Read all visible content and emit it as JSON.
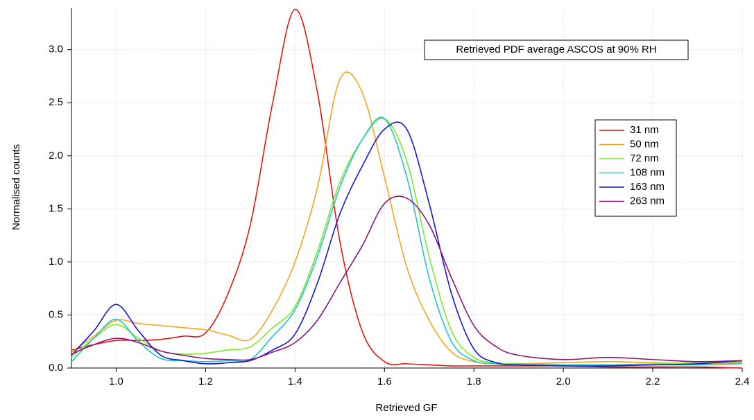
{
  "chart_data": {
    "type": "line",
    "annotation": "Retrieved PDF average ASCOS at 90% RH",
    "x_label": "Retrieved GF",
    "y_label": "Normalised counts",
    "x": [
      0.9,
      0.95,
      1.0,
      1.05,
      1.1,
      1.15,
      1.2,
      1.25,
      1.3,
      1.35,
      1.4,
      1.45,
      1.5,
      1.55,
      1.6,
      1.65,
      1.7,
      1.75,
      1.8,
      1.85,
      1.9,
      2.0,
      2.1,
      2.2,
      2.3,
      2.4
    ],
    "series": [
      {
        "name": "31 nm",
        "color": "#e8140f",
        "values": [
          0.17,
          0.22,
          0.26,
          0.26,
          0.27,
          0.3,
          0.33,
          0.7,
          1.35,
          2.5,
          3.38,
          2.6,
          1.2,
          0.35,
          0.06,
          0.04,
          0.03,
          0.02,
          0.02,
          0.02,
          0.02,
          0.02,
          0.01,
          0.01,
          0.01,
          0.0
        ]
      },
      {
        "name": "50 nm",
        "color": "#f5a41a",
        "values": [
          0.15,
          0.3,
          0.45,
          0.42,
          0.4,
          0.38,
          0.36,
          0.31,
          0.27,
          0.55,
          1.0,
          1.7,
          2.72,
          2.6,
          1.8,
          0.95,
          0.45,
          0.15,
          0.06,
          0.04,
          0.04,
          0.05,
          0.06,
          0.05,
          0.04,
          0.05
        ]
      },
      {
        "name": "72 nm",
        "color": "#7fe82a",
        "values": [
          0.1,
          0.28,
          0.41,
          0.28,
          0.16,
          0.13,
          0.14,
          0.17,
          0.2,
          0.38,
          0.58,
          1.1,
          1.75,
          2.15,
          2.35,
          1.95,
          1.05,
          0.35,
          0.1,
          0.05,
          0.04,
          0.03,
          0.03,
          0.04,
          0.05,
          0.06
        ]
      },
      {
        "name": "108 nm",
        "color": "#1ac8c8",
        "values": [
          0.06,
          0.28,
          0.46,
          0.25,
          0.09,
          0.07,
          0.06,
          0.07,
          0.08,
          0.3,
          0.55,
          1.05,
          1.7,
          2.15,
          2.35,
          1.8,
          0.85,
          0.25,
          0.07,
          0.04,
          0.03,
          0.03,
          0.03,
          0.03,
          0.03,
          0.04
        ]
      },
      {
        "name": "163 nm",
        "color": "#1414d2",
        "values": [
          0.12,
          0.35,
          0.6,
          0.35,
          0.12,
          0.07,
          0.04,
          0.05,
          0.07,
          0.17,
          0.32,
          0.8,
          1.45,
          1.9,
          2.25,
          2.25,
          1.55,
          0.7,
          0.18,
          0.05,
          0.03,
          0.02,
          0.02,
          0.03,
          0.04,
          0.07
        ]
      },
      {
        "name": "263 nm",
        "color": "#8c1478",
        "values": [
          0.13,
          0.22,
          0.28,
          0.24,
          0.16,
          0.12,
          0.09,
          0.08,
          0.08,
          0.15,
          0.24,
          0.45,
          0.8,
          1.15,
          1.55,
          1.6,
          1.35,
          0.85,
          0.4,
          0.2,
          0.12,
          0.08,
          0.1,
          0.08,
          0.06,
          0.07
        ]
      }
    ],
    "xlim": [
      0.9,
      2.4
    ],
    "xticks": [
      {
        "value": 1.0,
        "label": "1.0"
      },
      1.2,
      1.4,
      1.6,
      1.8,
      {
        "value": 2.0,
        "label": "2.0"
      },
      2.2,
      2.4
    ],
    "ylim": [
      0,
      3.39
    ],
    "yticks": [
      {
        "value": 0,
        "label": "0.0"
      },
      0.5,
      {
        "value": 1.0,
        "label": "1.0"
      },
      1.5,
      {
        "value": 2.0,
        "label": "2.0"
      },
      2.5,
      {
        "value": 3.0,
        "label": "3.0"
      }
    ],
    "grid": true
  }
}
